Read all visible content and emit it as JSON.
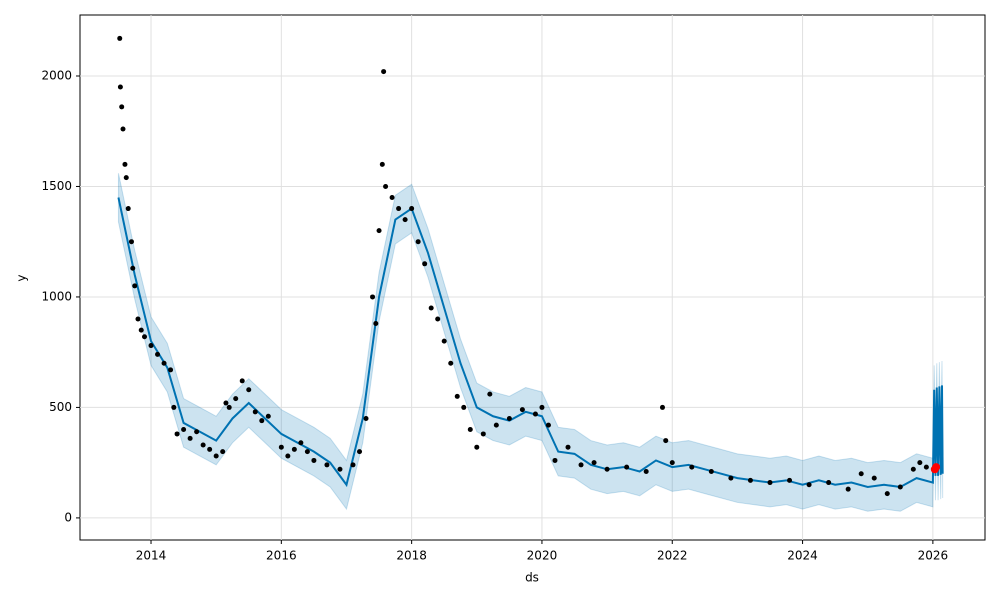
{
  "chart_data": {
    "type": "forecast",
    "x_label": "ds",
    "y_label": "y",
    "xlim": [
      2012.91,
      2026.8
    ],
    "ylim": [
      -100,
      2276
    ],
    "xticks": [
      2014,
      2016,
      2018,
      2020,
      2022,
      2024,
      2026
    ],
    "yticks": [
      0,
      500,
      1000,
      1500,
      2000
    ],
    "grid": true,
    "x": [
      2013.5,
      2013.75,
      2014.0,
      2014.25,
      2014.5,
      2014.75,
      2015.0,
      2015.25,
      2015.5,
      2015.75,
      2016.0,
      2016.25,
      2016.5,
      2016.75,
      2017.0,
      2017.25,
      2017.5,
      2017.75,
      2018.0,
      2018.25,
      2018.5,
      2018.75,
      2019.0,
      2019.25,
      2019.5,
      2019.75,
      2020.0,
      2020.25,
      2020.5,
      2020.75,
      2021.0,
      2021.25,
      2021.5,
      2021.75,
      2022.0,
      2022.25,
      2022.5,
      2022.75,
      2023.0,
      2023.25,
      2023.5,
      2023.75,
      2024.0,
      2024.25,
      2024.5,
      2024.75,
      2025.0,
      2025.25,
      2025.5,
      2025.75,
      2026.0,
      2026.02,
      2026.04,
      2026.06,
      2026.08,
      2026.1,
      2026.12,
      2026.14,
      2026.15
    ],
    "series": [
      {
        "color": "#0072b2",
        "values": [
          1450,
          1100,
          800,
          680,
          430,
          390,
          350,
          450,
          520,
          450,
          380,
          340,
          300,
          250,
          150,
          450,
          1000,
          1350,
          1400,
          1200,
          950,
          700,
          500,
          460,
          440,
          480,
          460,
          300,
          290,
          240,
          220,
          230,
          210,
          260,
          230,
          240,
          220,
          200,
          180,
          170,
          160,
          170,
          150,
          170,
          150,
          160,
          140,
          150,
          140,
          180,
          160,
          580,
          190,
          590,
          190,
          595,
          195,
          600,
          200
        ]
      }
    ],
    "band": {
      "color": "#0072b2",
      "lower": [
        1340,
        990,
        690,
        570,
        320,
        280,
        240,
        340,
        410,
        340,
        270,
        230,
        190,
        140,
        40,
        340,
        890,
        1240,
        1290,
        1090,
        840,
        590,
        390,
        350,
        330,
        370,
        350,
        190,
        180,
        130,
        110,
        120,
        100,
        150,
        120,
        130,
        110,
        90,
        70,
        60,
        50,
        60,
        40,
        60,
        40,
        50,
        30,
        40,
        30,
        70,
        50,
        470,
        80,
        480,
        80,
        485,
        85,
        490,
        90
      ],
      "upper": [
        1560,
        1210,
        910,
        790,
        540,
        500,
        460,
        560,
        630,
        560,
        490,
        450,
        410,
        360,
        260,
        560,
        1110,
        1460,
        1510,
        1310,
        1060,
        810,
        610,
        570,
        550,
        590,
        570,
        410,
        400,
        350,
        330,
        340,
        320,
        370,
        340,
        350,
        330,
        310,
        290,
        280,
        270,
        280,
        260,
        280,
        260,
        270,
        250,
        260,
        250,
        290,
        270,
        690,
        300,
        700,
        300,
        705,
        305,
        710,
        310
      ]
    },
    "observed": {
      "color": "#000000",
      "x": [
        2013.52,
        2013.53,
        2013.55,
        2013.57,
        2013.6,
        2013.62,
        2013.65,
        2013.7,
        2013.72,
        2013.75,
        2013.8,
        2013.85,
        2013.9,
        2014.0,
        2014.1,
        2014.2,
        2014.3,
        2014.35,
        2014.4,
        2014.5,
        2014.6,
        2014.7,
        2014.8,
        2014.9,
        2015.0,
        2015.1,
        2015.15,
        2015.2,
        2015.3,
        2015.4,
        2015.5,
        2015.6,
        2015.7,
        2015.8,
        2016.0,
        2016.1,
        2016.2,
        2016.3,
        2016.4,
        2016.5,
        2016.7,
        2016.9,
        2017.1,
        2017.2,
        2017.3,
        2017.4,
        2017.45,
        2017.5,
        2017.55,
        2017.57,
        2017.6,
        2017.7,
        2017.8,
        2017.9,
        2018.0,
        2018.1,
        2018.2,
        2018.3,
        2018.4,
        2018.5,
        2018.6,
        2018.7,
        2018.8,
        2018.9,
        2019.0,
        2019.1,
        2019.2,
        2019.3,
        2019.5,
        2019.7,
        2019.9,
        2020.0,
        2020.1,
        2020.2,
        2020.4,
        2020.6,
        2020.8,
        2021.0,
        2021.3,
        2021.6,
        2021.85,
        2021.9,
        2022.0,
        2022.3,
        2022.6,
        2022.9,
        2023.2,
        2023.5,
        2023.8,
        2024.1,
        2024.4,
        2024.7,
        2024.9,
        2025.1,
        2025.3,
        2025.5,
        2025.7,
        2025.8,
        2025.9
      ],
      "values": [
        2170,
        1950,
        1860,
        1760,
        1600,
        1540,
        1400,
        1250,
        1130,
        1050,
        900,
        850,
        820,
        780,
        740,
        700,
        670,
        500,
        380,
        400,
        360,
        390,
        330,
        310,
        280,
        300,
        520,
        500,
        540,
        620,
        580,
        480,
        440,
        460,
        320,
        280,
        310,
        340,
        300,
        260,
        240,
        220,
        240,
        300,
        450,
        1000,
        880,
        1300,
        1600,
        2020,
        1500,
        1450,
        1400,
        1350,
        1400,
        1250,
        1150,
        950,
        900,
        800,
        700,
        550,
        500,
        400,
        320,
        380,
        560,
        420,
        450,
        490,
        470,
        500,
        420,
        260,
        320,
        240,
        250,
        220,
        230,
        210,
        500,
        350,
        250,
        230,
        210,
        180,
        170,
        160,
        170,
        150,
        160,
        130,
        200,
        180,
        110,
        140,
        220,
        250,
        230
      ]
    },
    "highlight": {
      "color": "#ff0000",
      "x": [
        2026.03,
        2026.05
      ],
      "values": [
        220,
        230
      ]
    }
  }
}
